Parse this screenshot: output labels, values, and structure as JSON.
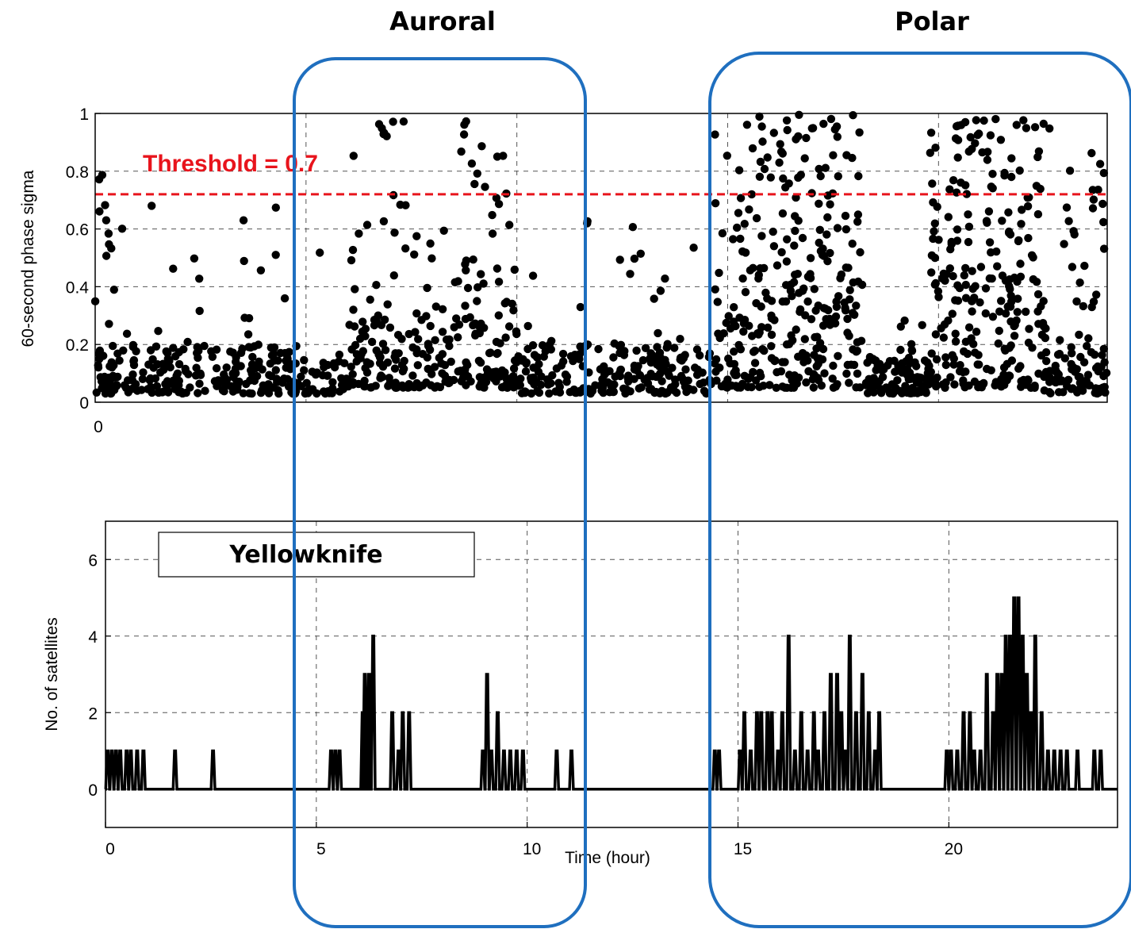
{
  "regions": [
    {
      "label": "Auroral",
      "x_range": [
        4.4,
        11.1
      ],
      "color": "#1f6fbf"
    },
    {
      "label": "Polar",
      "x_range": [
        14.4,
        24.4
      ],
      "color": "#1f6fbf"
    }
  ],
  "chart_data": [
    {
      "type": "scatter",
      "ylabel": "60-second phase sigma",
      "xlabel": "",
      "xlim": [
        0,
        24
      ],
      "ylim": [
        0,
        1
      ],
      "x_ticks": [
        0
      ],
      "x_tick_labels": [
        "0"
      ],
      "y_ticks": [
        0,
        0.2,
        0.4,
        0.6,
        0.8,
        1
      ],
      "y_tick_labels": [
        "0",
        "0.2",
        "0.4",
        "0.6",
        "0.8",
        "1"
      ],
      "grid": true,
      "threshold": {
        "value": 0.72,
        "label": "Threshold = 0.7",
        "color": "#e8141c"
      },
      "point_color": "#000000",
      "activity_profile": [
        {
          "x": [
            0,
            0.4
          ],
          "density": 1.0,
          "baseline": [
            0.03,
            0.2
          ],
          "peak": [
            0.2,
            0.98
          ],
          "frac_high": 0.35
        },
        {
          "x": [
            0.4,
            4.6
          ],
          "density": 0.55,
          "baseline": [
            0.03,
            0.2
          ],
          "peak": [
            0.2,
            0.7
          ],
          "frac_high": 0.08
        },
        {
          "x": [
            4.6,
            6.0
          ],
          "density": 0.45,
          "baseline": [
            0.03,
            0.15
          ],
          "peak": [
            0.15,
            0.98
          ],
          "frac_high": 0.06
        },
        {
          "x": [
            6.0,
            7.4
          ],
          "density": 0.8,
          "baseline": [
            0.05,
            0.3
          ],
          "peak": [
            0.3,
            1.0
          ],
          "frac_high": 0.3
        },
        {
          "x": [
            7.4,
            8.6
          ],
          "density": 0.6,
          "baseline": [
            0.05,
            0.3
          ],
          "peak": [
            0.3,
            0.6
          ],
          "frac_high": 0.15
        },
        {
          "x": [
            8.6,
            10.0
          ],
          "density": 0.85,
          "baseline": [
            0.05,
            0.35
          ],
          "peak": [
            0.35,
            1.0
          ],
          "frac_high": 0.3
        },
        {
          "x": [
            10.0,
            14.5
          ],
          "density": 0.55,
          "baseline": [
            0.03,
            0.2
          ],
          "peak": [
            0.2,
            0.65
          ],
          "frac_high": 0.08
        },
        {
          "x": [
            14.5,
            15.3
          ],
          "density": 0.7,
          "baseline": [
            0.05,
            0.3
          ],
          "peak": [
            0.3,
            0.95
          ],
          "frac_high": 0.35
        },
        {
          "x": [
            15.3,
            18.2
          ],
          "density": 1.0,
          "baseline": [
            0.05,
            0.3
          ],
          "peak": [
            0.3,
            1.0
          ],
          "frac_high": 0.55
        },
        {
          "x": [
            18.2,
            19.8
          ],
          "density": 0.7,
          "baseline": [
            0.03,
            0.15
          ],
          "peak": [
            0.15,
            0.3
          ],
          "frac_high": 0.1
        },
        {
          "x": [
            19.8,
            22.5
          ],
          "density": 1.0,
          "baseline": [
            0.05,
            0.35
          ],
          "peak": [
            0.35,
            1.0
          ],
          "frac_high": 0.5
        },
        {
          "x": [
            22.5,
            24.0
          ],
          "density": 0.75,
          "baseline": [
            0.03,
            0.2
          ],
          "peak": [
            0.2,
            0.95
          ],
          "frac_high": 0.25
        }
      ]
    },
    {
      "type": "line",
      "station": "Yellowknife",
      "xlabel": "Time (hour)",
      "ylabel": "No. of satellites",
      "xlim": [
        0,
        24
      ],
      "ylim": [
        -1,
        7
      ],
      "x_ticks": [
        0,
        5,
        10,
        15,
        20
      ],
      "x_tick_labels": [
        "0",
        "5",
        "10",
        "15",
        "20"
      ],
      "y_ticks": [
        0,
        2,
        4,
        6
      ],
      "y_tick_labels": [
        "0",
        "2",
        "4",
        "6"
      ],
      "grid": true,
      "line_color": "#000000",
      "events": [
        {
          "x": 0.05,
          "y": 1
        },
        {
          "x": 0.15,
          "y": 1
        },
        {
          "x": 0.25,
          "y": 1
        },
        {
          "x": 0.35,
          "y": 1
        },
        {
          "x": 0.5,
          "y": 1
        },
        {
          "x": 0.6,
          "y": 1
        },
        {
          "x": 0.75,
          "y": 1
        },
        {
          "x": 0.9,
          "y": 1
        },
        {
          "x": 1.65,
          "y": 1
        },
        {
          "x": 2.55,
          "y": 1
        },
        {
          "x": 5.35,
          "y": 1
        },
        {
          "x": 5.45,
          "y": 1
        },
        {
          "x": 5.55,
          "y": 1
        },
        {
          "x": 6.1,
          "y": 2
        },
        {
          "x": 6.15,
          "y": 3
        },
        {
          "x": 6.2,
          "y": 2
        },
        {
          "x": 6.25,
          "y": 3
        },
        {
          "x": 6.35,
          "y": 4
        },
        {
          "x": 6.8,
          "y": 2
        },
        {
          "x": 6.95,
          "y": 1
        },
        {
          "x": 7.05,
          "y": 2
        },
        {
          "x": 7.2,
          "y": 2
        },
        {
          "x": 8.95,
          "y": 1
        },
        {
          "x": 9.05,
          "y": 3
        },
        {
          "x": 9.15,
          "y": 1
        },
        {
          "x": 9.3,
          "y": 2
        },
        {
          "x": 9.45,
          "y": 1
        },
        {
          "x": 9.6,
          "y": 1
        },
        {
          "x": 9.75,
          "y": 1
        },
        {
          "x": 9.9,
          "y": 1
        },
        {
          "x": 10.7,
          "y": 1
        },
        {
          "x": 11.05,
          "y": 1
        },
        {
          "x": 14.45,
          "y": 1
        },
        {
          "x": 14.55,
          "y": 1
        },
        {
          "x": 15.05,
          "y": 1
        },
        {
          "x": 15.15,
          "y": 2
        },
        {
          "x": 15.3,
          "y": 1
        },
        {
          "x": 15.45,
          "y": 2
        },
        {
          "x": 15.55,
          "y": 2
        },
        {
          "x": 15.7,
          "y": 2
        },
        {
          "x": 15.8,
          "y": 2
        },
        {
          "x": 15.95,
          "y": 1
        },
        {
          "x": 16.05,
          "y": 2
        },
        {
          "x": 16.2,
          "y": 4
        },
        {
          "x": 16.35,
          "y": 1
        },
        {
          "x": 16.5,
          "y": 2
        },
        {
          "x": 16.65,
          "y": 1
        },
        {
          "x": 16.8,
          "y": 2
        },
        {
          "x": 16.9,
          "y": 1
        },
        {
          "x": 17.05,
          "y": 2
        },
        {
          "x": 17.2,
          "y": 3
        },
        {
          "x": 17.35,
          "y": 3
        },
        {
          "x": 17.45,
          "y": 2
        },
        {
          "x": 17.55,
          "y": 1
        },
        {
          "x": 17.65,
          "y": 4
        },
        {
          "x": 17.8,
          "y": 2
        },
        {
          "x": 17.95,
          "y": 3
        },
        {
          "x": 18.1,
          "y": 2
        },
        {
          "x": 18.25,
          "y": 1
        },
        {
          "x": 18.35,
          "y": 2
        },
        {
          "x": 19.95,
          "y": 1
        },
        {
          "x": 20.05,
          "y": 1
        },
        {
          "x": 20.2,
          "y": 1
        },
        {
          "x": 20.35,
          "y": 2
        },
        {
          "x": 20.5,
          "y": 2
        },
        {
          "x": 20.6,
          "y": 1
        },
        {
          "x": 20.75,
          "y": 1
        },
        {
          "x": 20.9,
          "y": 3
        },
        {
          "x": 21.05,
          "y": 2
        },
        {
          "x": 21.15,
          "y": 3
        },
        {
          "x": 21.25,
          "y": 3
        },
        {
          "x": 21.35,
          "y": 4
        },
        {
          "x": 21.45,
          "y": 4
        },
        {
          "x": 21.55,
          "y": 5
        },
        {
          "x": 21.65,
          "y": 5
        },
        {
          "x": 21.75,
          "y": 4
        },
        {
          "x": 21.85,
          "y": 3
        },
        {
          "x": 21.95,
          "y": 2
        },
        {
          "x": 22.05,
          "y": 4
        },
        {
          "x": 22.2,
          "y": 2
        },
        {
          "x": 22.35,
          "y": 1
        },
        {
          "x": 22.5,
          "y": 1
        },
        {
          "x": 22.65,
          "y": 1
        },
        {
          "x": 22.8,
          "y": 1
        },
        {
          "x": 23.05,
          "y": 1
        },
        {
          "x": 23.45,
          "y": 1
        },
        {
          "x": 23.6,
          "y": 1
        }
      ]
    }
  ]
}
